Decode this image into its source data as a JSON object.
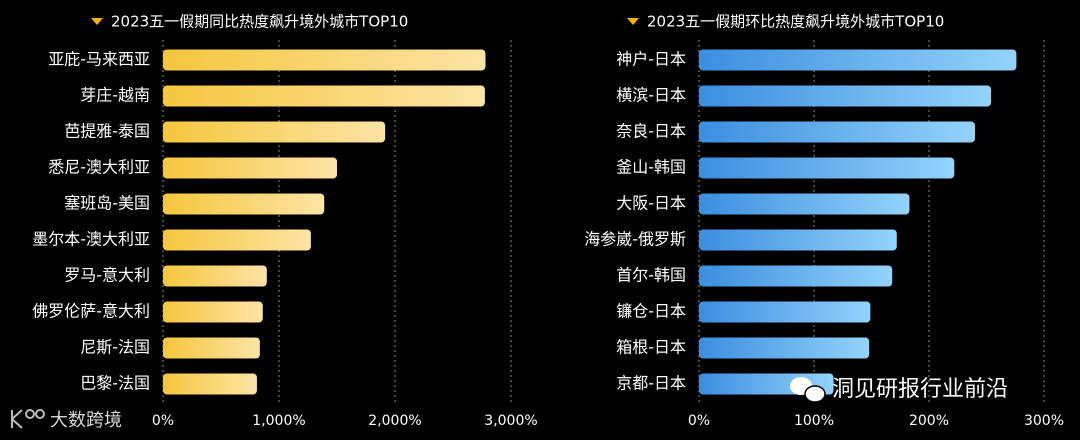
{
  "chart_data": [
    {
      "type": "bar",
      "orientation": "horizontal",
      "title": "2023五一假期同比热度飙升境外城市TOP10",
      "categories": [
        "亚庇-马来西亚",
        "芽庄-越南",
        "芭提雅-泰国",
        "悉尼-澳大利亚",
        "塞班岛-美国",
        "墨尔本-澳大利亚",
        "罗马-意大利",
        "佛罗伦萨-意大利",
        "尼斯-法国",
        "巴黎-法国"
      ],
      "values": [
        2780,
        2775,
        1915,
        1500,
        1390,
        1275,
        895,
        860,
        835,
        810
      ],
      "colors": [
        "#f5c63c",
        "#fde4a6"
      ],
      "xlim": [
        0,
        3000
      ],
      "xticks": [
        {
          "value": 0,
          "label": "0%"
        },
        {
          "value": 1000,
          "label": "1,000%"
        },
        {
          "value": 2000,
          "label": "2,000%"
        },
        {
          "value": 3000,
          "label": "3,000%"
        }
      ],
      "grid": true
    },
    {
      "type": "bar",
      "orientation": "horizontal",
      "title": "2023五一假期环比热度飙升境外城市TOP10",
      "categories": [
        "神户-日本",
        "横滨-日本",
        "奈良-日本",
        "釜山-韩国",
        "大阪-日本",
        "海参崴-俄罗斯",
        "首尔-韩国",
        "镰仓-日本",
        "箱根-日本",
        "京都-日本"
      ],
      "values": [
        276,
        254,
        240,
        222,
        183,
        172,
        168,
        149,
        148,
        117
      ],
      "colors": [
        "#3b8ee0",
        "#93d3fb"
      ],
      "xlim": [
        0,
        300
      ],
      "xticks": [
        {
          "value": 0,
          "label": "0%"
        },
        {
          "value": 100,
          "label": "100%"
        },
        {
          "value": 200,
          "label": "200%"
        },
        {
          "value": 300,
          "label": "300%"
        }
      ],
      "grid": true
    }
  ],
  "watermarks": [
    "大数跨境",
    "洞见研报行业前沿"
  ]
}
